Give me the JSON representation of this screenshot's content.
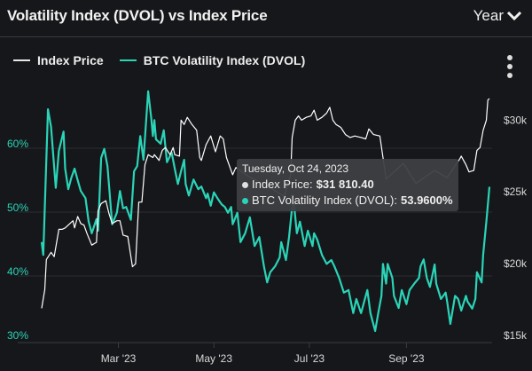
{
  "header": {
    "title": "Volatility Index (DVOL) vs Index Price",
    "period_label": "Year",
    "period_icon": "chevron-down-icon"
  },
  "legend": [
    {
      "label": "Index Price",
      "color": "#e8e8e8"
    },
    {
      "label": "BTC Volatility Index (DVOL)",
      "color": "#2ad4b8"
    }
  ],
  "menu_icon": "kebab-vertical-icon",
  "tooltip": {
    "date": "Tuesday, Oct 24, 2023",
    "rows": [
      {
        "label": "Index Price:",
        "value": "$31 810.40",
        "color": "#e0e0e0"
      },
      {
        "label": "BTC Volatility Index (DVOL):",
        "value": "53.9600%",
        "color": "#2ad4b8"
      }
    ]
  },
  "chart_data": {
    "type": "line",
    "title": "Volatility Index (DVOL) vs Index Price",
    "xlim": [
      "2023-01-11",
      "2023-10-24"
    ],
    "x_ticks": [
      {
        "date": "2023-03-01",
        "label": "Mar '23"
      },
      {
        "date": "2023-05-01",
        "label": "May '23"
      },
      {
        "date": "2023-07-01",
        "label": "Jul '23"
      },
      {
        "date": "2023-09-01",
        "label": "Sep '23"
      }
    ],
    "left_axis": {
      "ylim": [
        30,
        70
      ],
      "ticks": [
        {
          "value": 30,
          "label": "30%"
        },
        {
          "value": 40,
          "label": "40%"
        },
        {
          "value": 50,
          "label": "50%"
        },
        {
          "value": 60,
          "label": "60%"
        }
      ],
      "color": "#2ad4b8"
    },
    "right_axis": {
      "ylim": [
        15,
        32.8
      ],
      "ticks": [
        {
          "value": 15,
          "label": "$15k"
        },
        {
          "value": 20,
          "label": "$20k"
        },
        {
          "value": 25,
          "label": "$25k"
        },
        {
          "value": 30,
          "label": "$30k"
        }
      ],
      "color": "#d8d8d8"
    },
    "grid": true,
    "legend_position": "top-left",
    "series": [
      {
        "name": "Index Price",
        "axis": "right",
        "unit": "k USD",
        "color": "#ffffff",
        "points": [
          [
            "2023-01-11",
            17.2
          ],
          [
            "2023-01-13",
            18.5
          ],
          [
            "2023-01-14",
            20.6
          ],
          [
            "2023-01-17",
            21.1
          ],
          [
            "2023-01-19",
            20.8
          ],
          [
            "2023-01-22",
            22.7
          ],
          [
            "2023-01-24",
            22.7
          ],
          [
            "2023-01-26",
            22.8
          ],
          [
            "2023-01-29",
            23.1
          ],
          [
            "2023-01-31",
            23.3
          ],
          [
            "2023-02-01",
            22.8
          ],
          [
            "2023-02-03",
            23.6
          ],
          [
            "2023-02-05",
            23.1
          ],
          [
            "2023-02-07",
            23.0
          ],
          [
            "2023-02-09",
            22.4
          ],
          [
            "2023-02-12",
            21.6
          ],
          [
            "2023-02-15",
            21.8
          ],
          [
            "2023-02-16",
            24.0
          ],
          [
            "2023-02-18",
            24.5
          ],
          [
            "2023-02-21",
            24.7
          ],
          [
            "2023-02-23",
            23.8
          ],
          [
            "2023-02-25",
            23.1
          ],
          [
            "2023-02-28",
            23.3
          ],
          [
            "2023-03-02",
            23.3
          ],
          [
            "2023-03-04",
            22.3
          ],
          [
            "2023-03-07",
            22.2
          ],
          [
            "2023-03-10",
            20.1
          ],
          [
            "2023-03-12",
            20.3
          ],
          [
            "2023-03-14",
            24.6
          ],
          [
            "2023-03-16",
            24.6
          ],
          [
            "2023-03-18",
            27.2
          ],
          [
            "2023-03-20",
            27.9
          ],
          [
            "2023-03-23",
            27.7
          ],
          [
            "2023-03-24",
            27.9
          ],
          [
            "2023-03-27",
            27.5
          ],
          [
            "2023-03-29",
            28.2
          ],
          [
            "2023-03-31",
            28.4
          ],
          [
            "2023-04-03",
            27.9
          ],
          [
            "2023-04-05",
            28.4
          ],
          [
            "2023-04-06",
            27.9
          ],
          [
            "2023-04-09",
            27.8
          ],
          [
            "2023-04-10",
            30.3
          ],
          [
            "2023-04-12",
            30.0
          ],
          [
            "2023-04-14",
            30.5
          ],
          [
            "2023-04-17",
            30.0
          ],
          [
            "2023-04-20",
            29.6
          ],
          [
            "2023-04-22",
            27.7
          ],
          [
            "2023-04-23",
            27.5
          ],
          [
            "2023-04-26",
            28.6
          ],
          [
            "2023-04-29",
            29.2
          ],
          [
            "2023-05-02",
            28.1
          ],
          [
            "2023-05-05",
            29.2
          ],
          [
            "2023-05-07",
            29.0
          ],
          [
            "2023-05-09",
            27.7
          ],
          [
            "2023-05-13",
            26.5
          ],
          [
            "2023-05-15",
            27.0
          ],
          [
            "2023-05-23",
            26.4
          ],
          [
            "2023-06-03",
            25.8
          ],
          [
            "2023-06-15",
            25.0
          ],
          [
            "2023-06-19",
            26.5
          ],
          [
            "2023-06-20",
            29.1
          ],
          [
            "2023-06-22",
            30.3
          ],
          [
            "2023-06-24",
            30.6
          ],
          [
            "2023-06-26",
            30.3
          ],
          [
            "2023-06-29",
            30.5
          ],
          [
            "2023-07-02",
            30.6
          ],
          [
            "2023-07-04",
            31.0
          ],
          [
            "2023-07-06",
            30.3
          ],
          [
            "2023-07-09",
            30.5
          ],
          [
            "2023-07-12",
            30.8
          ],
          [
            "2023-07-14",
            31.2
          ],
          [
            "2023-07-16",
            30.3
          ],
          [
            "2023-07-18",
            30.0
          ],
          [
            "2023-07-21",
            29.8
          ],
          [
            "2023-07-24",
            29.3
          ],
          [
            "2023-07-27",
            29.1
          ],
          [
            "2023-07-30",
            29.2
          ],
          [
            "2023-08-03",
            29.1
          ],
          [
            "2023-08-06",
            29.0
          ],
          [
            "2023-08-08",
            29.7
          ],
          [
            "2023-08-11",
            29.3
          ],
          [
            "2023-08-15",
            29.2
          ],
          [
            "2023-08-19",
            26.2
          ],
          [
            "2023-08-30",
            27.3
          ],
          [
            "2023-09-07",
            25.9
          ],
          [
            "2023-09-19",
            26.8
          ],
          [
            "2023-09-27",
            26.3
          ],
          [
            "2023-10-05",
            27.6
          ],
          [
            "2023-10-06",
            27.8
          ],
          [
            "2023-10-09",
            27.2
          ],
          [
            "2023-10-11",
            26.7
          ],
          [
            "2023-10-14",
            26.8
          ],
          [
            "2023-10-16",
            28.2
          ],
          [
            "2023-10-18",
            28.4
          ],
          [
            "2023-10-20",
            29.6
          ],
          [
            "2023-10-22",
            30.3
          ],
          [
            "2023-10-23",
            31.7
          ],
          [
            "2023-10-24",
            31.81
          ]
        ]
      },
      {
        "name": "BTC Volatility Index (DVOL)",
        "axis": "left",
        "unit": "%",
        "color": "#2ad4b8",
        "points": [
          [
            "2023-01-11",
            45.3
          ],
          [
            "2023-01-12",
            43.3
          ],
          [
            "2023-01-15",
            66.1
          ],
          [
            "2023-01-17",
            63.3
          ],
          [
            "2023-01-20",
            53.8
          ],
          [
            "2023-01-22",
            59.6
          ],
          [
            "2023-01-25",
            62.6
          ],
          [
            "2023-01-26",
            56.8
          ],
          [
            "2023-01-28",
            53.6
          ],
          [
            "2023-01-30",
            55.4
          ],
          [
            "2023-02-01",
            56.8
          ],
          [
            "2023-02-03",
            55.0
          ],
          [
            "2023-02-05",
            53.3
          ],
          [
            "2023-02-08",
            52.2
          ],
          [
            "2023-02-10",
            48.5
          ],
          [
            "2023-02-12",
            46.7
          ],
          [
            "2023-02-15",
            48.9
          ],
          [
            "2023-02-16",
            47.1
          ],
          [
            "2023-02-18",
            58.5
          ],
          [
            "2023-02-20",
            59.9
          ],
          [
            "2023-02-22",
            57.2
          ],
          [
            "2023-02-25",
            48.1
          ],
          [
            "2023-02-28",
            49.9
          ],
          [
            "2023-03-02",
            53.3
          ],
          [
            "2023-03-04",
            50.6
          ],
          [
            "2023-03-06",
            50.8
          ],
          [
            "2023-03-09",
            48.8
          ],
          [
            "2023-03-11",
            56.4
          ],
          [
            "2023-03-13",
            57.2
          ],
          [
            "2023-03-15",
            61.9
          ],
          [
            "2023-03-17",
            58.2
          ],
          [
            "2023-03-20",
            68.9
          ],
          [
            "2023-03-22",
            64.7
          ],
          [
            "2023-03-23",
            61.9
          ],
          [
            "2023-03-24",
            64.4
          ],
          [
            "2023-03-25",
            61.4
          ],
          [
            "2023-03-28",
            60.7
          ],
          [
            "2023-03-30",
            62.8
          ],
          [
            "2023-04-01",
            57.8
          ],
          [
            "2023-04-04",
            59.3
          ],
          [
            "2023-04-06",
            56.8
          ],
          [
            "2023-04-08",
            54.4
          ],
          [
            "2023-04-10",
            56.4
          ],
          [
            "2023-04-12",
            58.2
          ],
          [
            "2023-04-13",
            54.4
          ],
          [
            "2023-04-15",
            52.6
          ],
          [
            "2023-04-18",
            55.1
          ],
          [
            "2023-04-21",
            53.6
          ],
          [
            "2023-04-23",
            54.0
          ],
          [
            "2023-04-26",
            52.2
          ],
          [
            "2023-04-27",
            52.9
          ],
          [
            "2023-04-29",
            51.0
          ],
          [
            "2023-05-01",
            53.1
          ],
          [
            "2023-05-04",
            51.9
          ],
          [
            "2023-05-06",
            51.2
          ],
          [
            "2023-05-08",
            50.8
          ],
          [
            "2023-05-10",
            49.9
          ],
          [
            "2023-05-12",
            50.8
          ],
          [
            "2023-05-13",
            48.1
          ],
          [
            "2023-05-16",
            49.9
          ],
          [
            "2023-05-18",
            45.3
          ],
          [
            "2023-05-21",
            46.7
          ],
          [
            "2023-05-24",
            49.2
          ],
          [
            "2023-05-27",
            44.7
          ],
          [
            "2023-05-30",
            46.1
          ],
          [
            "2023-06-02",
            41.5
          ],
          [
            "2023-06-04",
            39.0
          ],
          [
            "2023-06-06",
            40.6
          ],
          [
            "2023-06-09",
            41.5
          ],
          [
            "2023-06-12",
            42.9
          ],
          [
            "2023-06-13",
            45.3
          ],
          [
            "2023-06-16",
            42.5
          ],
          [
            "2023-06-18",
            46.1
          ],
          [
            "2023-06-20",
            50.8
          ],
          [
            "2023-06-21",
            51.7
          ],
          [
            "2023-06-23",
            46.7
          ],
          [
            "2023-06-25",
            48.5
          ],
          [
            "2023-06-28",
            44.7
          ],
          [
            "2023-06-30",
            47.1
          ],
          [
            "2023-07-03",
            44.7
          ],
          [
            "2023-07-04",
            46.7
          ],
          [
            "2023-07-06",
            45.7
          ],
          [
            "2023-07-09",
            43.3
          ],
          [
            "2023-07-12",
            41.9
          ],
          [
            "2023-07-15",
            42.5
          ],
          [
            "2023-07-17",
            41.5
          ],
          [
            "2023-07-20",
            39.7
          ],
          [
            "2023-07-23",
            37.4
          ],
          [
            "2023-07-26",
            37.8
          ],
          [
            "2023-07-29",
            34.2
          ],
          [
            "2023-07-31",
            36.4
          ],
          [
            "2023-08-03",
            34.2
          ],
          [
            "2023-08-06",
            36.9
          ],
          [
            "2023-08-07",
            37.8
          ],
          [
            "2023-08-09",
            34.2
          ],
          [
            "2023-08-12",
            31.4
          ],
          [
            "2023-08-14",
            34.2
          ],
          [
            "2023-08-16",
            36.9
          ],
          [
            "2023-08-17",
            41.9
          ],
          [
            "2023-08-19",
            38.8
          ],
          [
            "2023-08-20",
            41.9
          ],
          [
            "2023-08-23",
            39.7
          ],
          [
            "2023-08-24",
            36.9
          ],
          [
            "2023-08-27",
            35.0
          ],
          [
            "2023-08-29",
            37.8
          ],
          [
            "2023-09-01",
            35.6
          ],
          [
            "2023-09-03",
            37.8
          ],
          [
            "2023-09-06",
            38.8
          ],
          [
            "2023-09-09",
            39.7
          ],
          [
            "2023-09-10",
            41.5
          ],
          [
            "2023-09-12",
            42.6
          ],
          [
            "2023-09-14",
            39.7
          ],
          [
            "2023-09-16",
            38.3
          ],
          [
            "2023-09-19",
            41.8
          ],
          [
            "2023-09-20",
            38.8
          ],
          [
            "2023-09-23",
            36.4
          ],
          [
            "2023-09-26",
            37.4
          ],
          [
            "2023-09-27",
            36.0
          ],
          [
            "2023-09-29",
            32.5
          ],
          [
            "2023-10-02",
            36.9
          ],
          [
            "2023-10-04",
            36.4
          ],
          [
            "2023-10-06",
            34.6
          ],
          [
            "2023-10-09",
            36.9
          ],
          [
            "2023-10-10",
            36.0
          ],
          [
            "2023-10-13",
            34.9
          ],
          [
            "2023-10-15",
            36.4
          ],
          [
            "2023-10-16",
            40.6
          ],
          [
            "2023-10-19",
            39.0
          ],
          [
            "2023-10-20",
            43.3
          ],
          [
            "2023-10-22",
            48.5
          ],
          [
            "2023-10-24",
            53.96
          ]
        ]
      }
    ]
  }
}
